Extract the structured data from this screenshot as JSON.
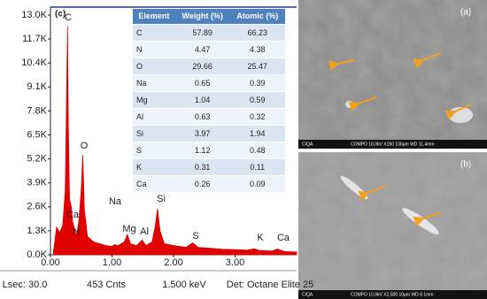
{
  "chart_data": {
    "type": "area",
    "panel_label": "(c)",
    "x": [
      0.05,
      0.1,
      0.15,
      0.2,
      0.24,
      0.26,
      0.277,
      0.29,
      0.31,
      0.34,
      0.36,
      0.39,
      0.42,
      0.46,
      0.5,
      0.525,
      0.55,
      0.6,
      0.7,
      0.8,
      0.9,
      1.0,
      1.04,
      1.1,
      1.2,
      1.25,
      1.3,
      1.4,
      1.49,
      1.55,
      1.65,
      1.7,
      1.74,
      1.78,
      1.85,
      2.0,
      2.2,
      2.31,
      2.4,
      2.6,
      2.8,
      3.0,
      3.2,
      3.31,
      3.4,
      3.6,
      3.69,
      3.8,
      4.0
    ],
    "values": [
      200,
      1500,
      1200,
      1600,
      3500,
      8000,
      12400,
      7000,
      3000,
      2600,
      1800,
      1400,
      1000,
      1800,
      3500,
      5400,
      2500,
      1000,
      700,
      600,
      500,
      450,
      550,
      500,
      700,
      1100,
      600,
      500,
      800,
      500,
      700,
      1500,
      2500,
      1300,
      600,
      500,
      400,
      650,
      400,
      350,
      300,
      280,
      250,
      330,
      230,
      200,
      310,
      180,
      150
    ],
    "color": "#e00000",
    "xlim": [
      0,
      4.0
    ],
    "ylim": [
      0,
      13000
    ],
    "xticks": [
      {
        "value": 0,
        "label": "0.00"
      },
      {
        "value": 1,
        "label": "1.00"
      },
      {
        "value": 2,
        "label": "2.00"
      },
      {
        "value": 3,
        "label": "3.00"
      }
    ],
    "yticks": [
      {
        "value": 0,
        "label": "0.0K"
      },
      {
        "value": 1300,
        "label": "1.3K"
      },
      {
        "value": 2600,
        "label": "2.6K"
      },
      {
        "value": 3900,
        "label": "3.9K"
      },
      {
        "value": 5200,
        "label": "5.2K"
      },
      {
        "value": 6500,
        "label": "6.5K"
      },
      {
        "value": 7800,
        "label": "7.8K"
      },
      {
        "value": 9100,
        "label": "9.1K"
      },
      {
        "value": 10400,
        "label": "10.4K"
      },
      {
        "value": 11700,
        "label": "11.7K"
      },
      {
        "value": 13000,
        "label": "13.0K"
      }
    ],
    "annotations": [
      "C",
      "O",
      "Ca",
      "N",
      "Na",
      "Mg",
      "Al",
      "Si",
      "S",
      "K",
      "Ca"
    ],
    "footer": [
      "Lsec: 30.0",
      "453 Cnts",
      "1.500 keV",
      "Det: Octane Elite 25"
    ]
  },
  "table": {
    "header": [
      "Element",
      "Weight (%)",
      "Atomic (%)"
    ],
    "rows": [
      [
        "C",
        "57.89",
        "66.23"
      ],
      [
        "N",
        "4.47",
        "4.38"
      ],
      [
        "O",
        "29.66",
        "25.47"
      ],
      [
        "Na",
        "0.65",
        "0.39"
      ],
      [
        "Mg",
        "1.04",
        "0.59"
      ],
      [
        "Al",
        "0.63",
        "0.32"
      ],
      [
        "Si",
        "3.97",
        "1.94"
      ],
      [
        "S",
        "1.12",
        "0.48"
      ],
      [
        "K",
        "0.31",
        "0.11"
      ],
      [
        "Ca",
        "0.26",
        "0.09"
      ]
    ]
  },
  "images": [
    {
      "label": "(a)",
      "info": [
        "CIQA",
        "COMPO 10.0kV X150 100μm WD 11.4mm"
      ]
    },
    {
      "label": "(b)",
      "info": [
        "CIQA",
        "COMPO 10.0kV X2,500 10μm WD 8.1mm"
      ]
    }
  ]
}
